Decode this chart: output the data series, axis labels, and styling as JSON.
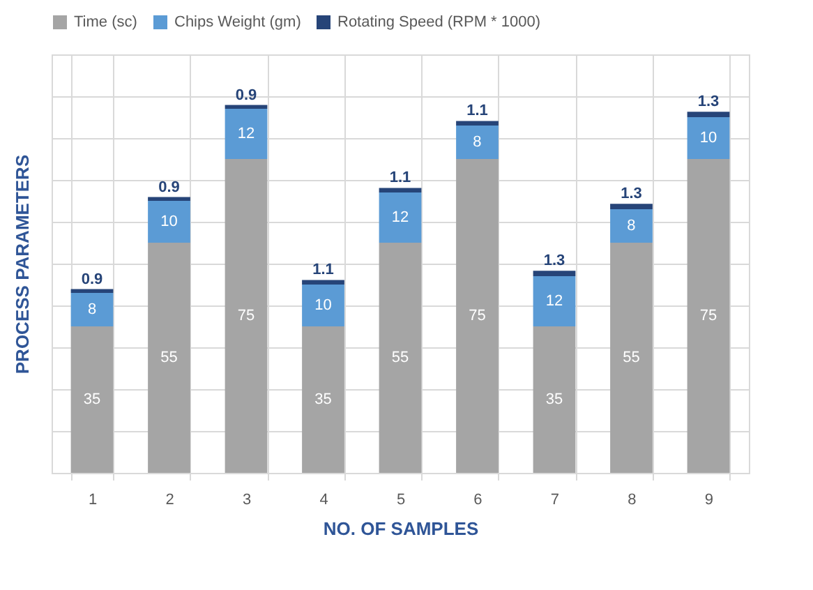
{
  "chart_data": {
    "type": "bar",
    "stacked": true,
    "xlabel": "NO. OF SAMPLES",
    "ylabel": "PROCESS PARAMETERS",
    "categories": [
      "1",
      "2",
      "3",
      "4",
      "5",
      "6",
      "7",
      "8",
      "9"
    ],
    "series": [
      {
        "name": "Time (sc)",
        "color": "#a5a5a5",
        "values": [
          35,
          55,
          75,
          35,
          55,
          75,
          35,
          55,
          75
        ]
      },
      {
        "name": "Chips Weight (gm)",
        "color": "#5b9bd5",
        "values": [
          8,
          10,
          12,
          10,
          12,
          8,
          12,
          8,
          10
        ]
      },
      {
        "name": "Rotating Speed (RPM * 1000)",
        "color": "#264478",
        "values": [
          0.9,
          0.9,
          0.9,
          1.1,
          1.1,
          1.1,
          1.3,
          1.3,
          1.3
        ]
      }
    ],
    "ylim": [
      0,
      100
    ],
    "yticks": [
      {
        "value": 0,
        "label": null
      },
      {
        "value": 10,
        "label": null
      },
      {
        "value": 20,
        "label": null
      },
      {
        "value": 30,
        "label": null
      },
      {
        "value": 40,
        "label": null
      },
      {
        "value": 50,
        "label": null
      },
      {
        "value": 60,
        "label": null
      },
      {
        "value": 70,
        "label": null
      },
      {
        "value": 80,
        "label": null
      },
      {
        "value": 90,
        "label": null
      },
      {
        "value": 100,
        "label": null
      }
    ],
    "tick_labels": "x",
    "grid": true,
    "legend": "top",
    "data_labels": true
  }
}
